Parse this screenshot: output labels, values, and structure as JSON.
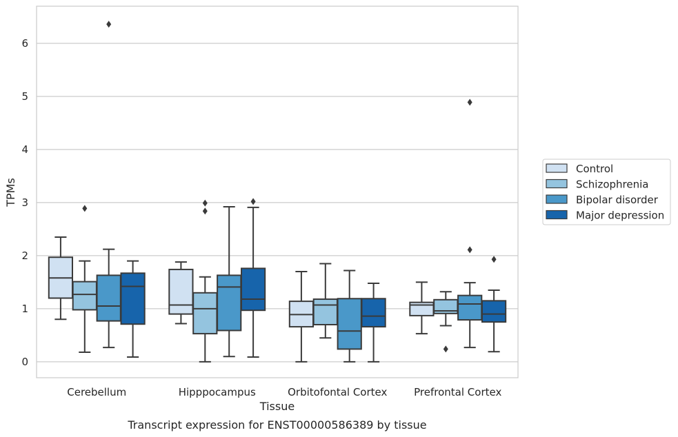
{
  "chart_data": {
    "type": "boxplot",
    "caption": "Transcript expression for ENST00000586389 by tissue",
    "xlabel": "Tissue",
    "ylabel": "TPMs",
    "ylim": [
      -0.3,
      6.7
    ],
    "yticks": [
      0,
      1,
      2,
      3,
      4,
      5,
      6
    ],
    "ytick_labels": [
      "0",
      "1",
      "2",
      "3",
      "4",
      "5",
      "6"
    ],
    "grid": "horizontal",
    "legend_position": "right",
    "categories": [
      "Cerebellum",
      "Hipppocampus",
      "Orbitofontal Cortex",
      "Prefrontal Cortex"
    ],
    "series": [
      {
        "name": "Control",
        "color": "#d0e1f2",
        "boxes": [
          {
            "whislo": 0.8,
            "q1": 1.2,
            "med": 1.58,
            "q3": 1.97,
            "whishi": 2.35,
            "fliers": []
          },
          {
            "whislo": 0.72,
            "q1": 0.9,
            "med": 1.07,
            "q3": 1.74,
            "whishi": 1.88,
            "fliers": []
          },
          {
            "whislo": 0.0,
            "q1": 0.66,
            "med": 0.89,
            "q3": 1.14,
            "whishi": 1.7,
            "fliers": []
          },
          {
            "whislo": 0.53,
            "q1": 0.87,
            "med": 1.07,
            "q3": 1.12,
            "whishi": 1.5,
            "fliers": []
          }
        ]
      },
      {
        "name": "Schizophrenia",
        "color": "#94c4df",
        "boxes": [
          {
            "whislo": 0.18,
            "q1": 0.98,
            "med": 1.27,
            "q3": 1.51,
            "whishi": 1.9,
            "fliers": [
              2.89
            ]
          },
          {
            "whislo": 0.0,
            "q1": 0.53,
            "med": 1.0,
            "q3": 1.3,
            "whishi": 1.6,
            "fliers": [
              2.84,
              2.99
            ]
          },
          {
            "whislo": 0.45,
            "q1": 0.7,
            "med": 1.07,
            "q3": 1.18,
            "whishi": 1.85,
            "fliers": []
          },
          {
            "whislo": 0.68,
            "q1": 0.91,
            "med": 0.96,
            "q3": 1.17,
            "whishi": 1.32,
            "fliers": [
              0.24
            ]
          }
        ]
      },
      {
        "name": "Bipolar disorder",
        "color": "#4a98c9",
        "boxes": [
          {
            "whislo": 0.27,
            "q1": 0.77,
            "med": 1.05,
            "q3": 1.63,
            "whishi": 2.12,
            "fliers": [
              6.36
            ]
          },
          {
            "whislo": 0.1,
            "q1": 0.59,
            "med": 1.41,
            "q3": 1.63,
            "whishi": 2.92,
            "fliers": []
          },
          {
            "whislo": 0.0,
            "q1": 0.24,
            "med": 0.58,
            "q3": 1.19,
            "whishi": 1.72,
            "fliers": []
          },
          {
            "whislo": 0.27,
            "q1": 0.79,
            "med": 1.09,
            "q3": 1.25,
            "whishi": 1.49,
            "fliers": [
              4.89,
              2.11
            ]
          }
        ]
      },
      {
        "name": "Major depression",
        "color": "#1764ab",
        "boxes": [
          {
            "whislo": 0.09,
            "q1": 0.71,
            "med": 1.42,
            "q3": 1.67,
            "whishi": 1.9,
            "fliers": []
          },
          {
            "whislo": 0.09,
            "q1": 0.97,
            "med": 1.18,
            "q3": 1.76,
            "whishi": 2.91,
            "fliers": [
              3.02
            ]
          },
          {
            "whislo": 0.0,
            "q1": 0.66,
            "med": 0.86,
            "q3": 1.19,
            "whishi": 1.48,
            "fliers": []
          },
          {
            "whislo": 0.19,
            "q1": 0.75,
            "med": 0.9,
            "q3": 1.15,
            "whishi": 1.35,
            "fliers": [
              1.93
            ]
          }
        ]
      }
    ]
  }
}
